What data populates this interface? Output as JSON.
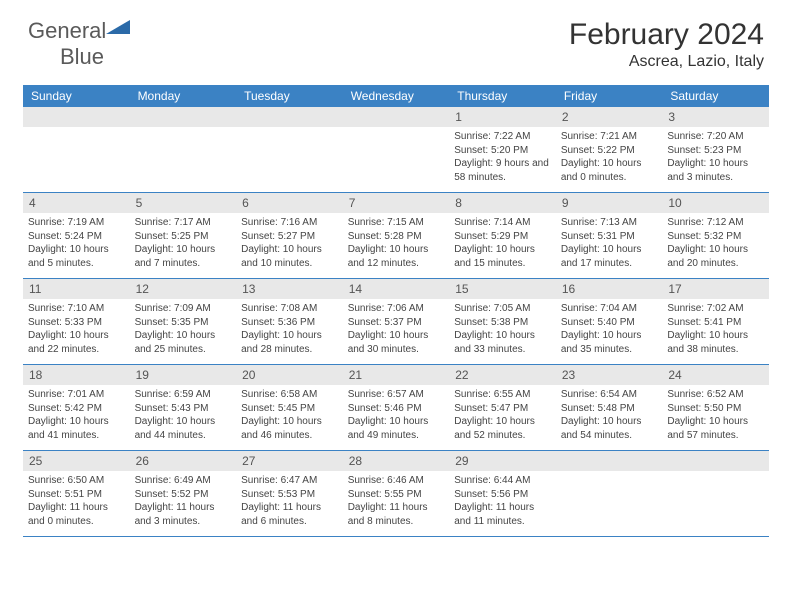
{
  "logo": {
    "word1": "General",
    "word2": "Blue"
  },
  "title": "February 2024",
  "subtitle": "Ascrea, Lazio, Italy",
  "colors": {
    "header_bar": "#3b82c4",
    "daynum_bg": "#e8e8e8",
    "text": "#444444",
    "title_text": "#333333",
    "logo_gray": "#5a5a5a",
    "logo_blue": "#2b6aa8"
  },
  "dow": [
    "Sunday",
    "Monday",
    "Tuesday",
    "Wednesday",
    "Thursday",
    "Friday",
    "Saturday"
  ],
  "weeks": [
    [
      null,
      null,
      null,
      null,
      {
        "n": "1",
        "sr": "7:22 AM",
        "ss": "5:20 PM",
        "dl": "9 hours and 58 minutes."
      },
      {
        "n": "2",
        "sr": "7:21 AM",
        "ss": "5:22 PM",
        "dl": "10 hours and 0 minutes."
      },
      {
        "n": "3",
        "sr": "7:20 AM",
        "ss": "5:23 PM",
        "dl": "10 hours and 3 minutes."
      }
    ],
    [
      {
        "n": "4",
        "sr": "7:19 AM",
        "ss": "5:24 PM",
        "dl": "10 hours and 5 minutes."
      },
      {
        "n": "5",
        "sr": "7:17 AM",
        "ss": "5:25 PM",
        "dl": "10 hours and 7 minutes."
      },
      {
        "n": "6",
        "sr": "7:16 AM",
        "ss": "5:27 PM",
        "dl": "10 hours and 10 minutes."
      },
      {
        "n": "7",
        "sr": "7:15 AM",
        "ss": "5:28 PM",
        "dl": "10 hours and 12 minutes."
      },
      {
        "n": "8",
        "sr": "7:14 AM",
        "ss": "5:29 PM",
        "dl": "10 hours and 15 minutes."
      },
      {
        "n": "9",
        "sr": "7:13 AM",
        "ss": "5:31 PM",
        "dl": "10 hours and 17 minutes."
      },
      {
        "n": "10",
        "sr": "7:12 AM",
        "ss": "5:32 PM",
        "dl": "10 hours and 20 minutes."
      }
    ],
    [
      {
        "n": "11",
        "sr": "7:10 AM",
        "ss": "5:33 PM",
        "dl": "10 hours and 22 minutes."
      },
      {
        "n": "12",
        "sr": "7:09 AM",
        "ss": "5:35 PM",
        "dl": "10 hours and 25 minutes."
      },
      {
        "n": "13",
        "sr": "7:08 AM",
        "ss": "5:36 PM",
        "dl": "10 hours and 28 minutes."
      },
      {
        "n": "14",
        "sr": "7:06 AM",
        "ss": "5:37 PM",
        "dl": "10 hours and 30 minutes."
      },
      {
        "n": "15",
        "sr": "7:05 AM",
        "ss": "5:38 PM",
        "dl": "10 hours and 33 minutes."
      },
      {
        "n": "16",
        "sr": "7:04 AM",
        "ss": "5:40 PM",
        "dl": "10 hours and 35 minutes."
      },
      {
        "n": "17",
        "sr": "7:02 AM",
        "ss": "5:41 PM",
        "dl": "10 hours and 38 minutes."
      }
    ],
    [
      {
        "n": "18",
        "sr": "7:01 AM",
        "ss": "5:42 PM",
        "dl": "10 hours and 41 minutes."
      },
      {
        "n": "19",
        "sr": "6:59 AM",
        "ss": "5:43 PM",
        "dl": "10 hours and 44 minutes."
      },
      {
        "n": "20",
        "sr": "6:58 AM",
        "ss": "5:45 PM",
        "dl": "10 hours and 46 minutes."
      },
      {
        "n": "21",
        "sr": "6:57 AM",
        "ss": "5:46 PM",
        "dl": "10 hours and 49 minutes."
      },
      {
        "n": "22",
        "sr": "6:55 AM",
        "ss": "5:47 PM",
        "dl": "10 hours and 52 minutes."
      },
      {
        "n": "23",
        "sr": "6:54 AM",
        "ss": "5:48 PM",
        "dl": "10 hours and 54 minutes."
      },
      {
        "n": "24",
        "sr": "6:52 AM",
        "ss": "5:50 PM",
        "dl": "10 hours and 57 minutes."
      }
    ],
    [
      {
        "n": "25",
        "sr": "6:50 AM",
        "ss": "5:51 PM",
        "dl": "11 hours and 0 minutes."
      },
      {
        "n": "26",
        "sr": "6:49 AM",
        "ss": "5:52 PM",
        "dl": "11 hours and 3 minutes."
      },
      {
        "n": "27",
        "sr": "6:47 AM",
        "ss": "5:53 PM",
        "dl": "11 hours and 6 minutes."
      },
      {
        "n": "28",
        "sr": "6:46 AM",
        "ss": "5:55 PM",
        "dl": "11 hours and 8 minutes."
      },
      {
        "n": "29",
        "sr": "6:44 AM",
        "ss": "5:56 PM",
        "dl": "11 hours and 11 minutes."
      },
      null,
      null
    ]
  ],
  "labels": {
    "sunrise": "Sunrise:",
    "sunset": "Sunset:",
    "daylight": "Daylight:"
  }
}
